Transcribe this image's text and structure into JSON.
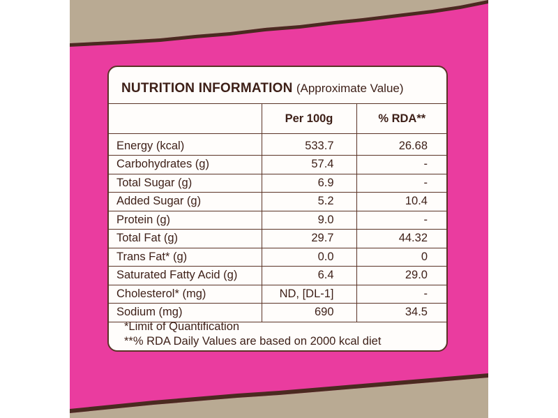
{
  "colors": {
    "pink": "#ea3c9f",
    "kraft": "#b9aa93",
    "brown_edge": "#4a2a20",
    "text": "#3d1f17"
  },
  "label": {
    "title": "NUTRITION INFORMATION",
    "subtitle": "(Approximate Value)",
    "columns": [
      "",
      "Per 100g",
      "% RDA**"
    ],
    "rows": [
      {
        "name": "Energy (kcal)",
        "per100g": "533.7",
        "rda": "26.68"
      },
      {
        "name": "Carbohydrates (g)",
        "per100g": "57.4",
        "rda": "-"
      },
      {
        "name": "Total Sugar (g)",
        "per100g": "6.9",
        "rda": "-"
      },
      {
        "name": "Added Sugar (g)",
        "per100g": "5.2",
        "rda": "10.4"
      },
      {
        "name": "Protein (g)",
        "per100g": "9.0",
        "rda": "-"
      },
      {
        "name": "Total Fat (g)",
        "per100g": "29.7",
        "rda": "44.32"
      },
      {
        "name": "Trans Fat* (g)",
        "per100g": "0.0",
        "rda": "0"
      },
      {
        "name": "Saturated Fatty Acid (g)",
        "per100g": "6.4",
        "rda": "29.0"
      },
      {
        "name": "Cholesterol* (mg)",
        "per100g": "ND, [DL-1]",
        "rda": "-"
      },
      {
        "name": "Sodium (mg)",
        "per100g": "690",
        "rda": "34.5"
      }
    ],
    "footnotes": [
      "*Limit of Quantification",
      "**% RDA Daily Values are based on 2000 kcal diet"
    ]
  }
}
